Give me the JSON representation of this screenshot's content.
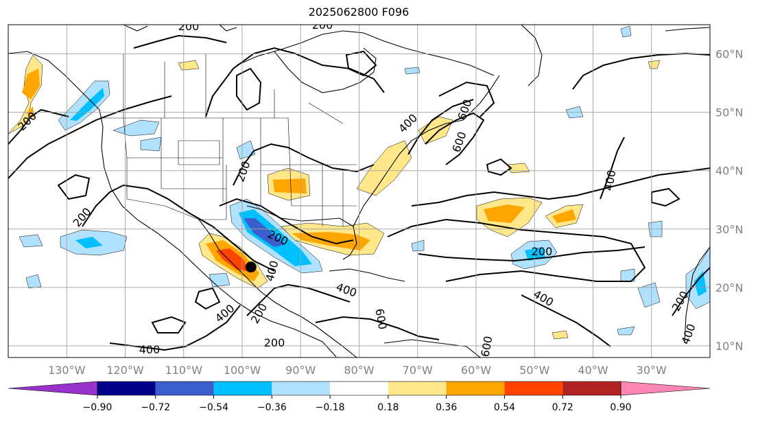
{
  "title": "2025062800 F096",
  "map": {
    "lon_range": [
      -140,
      -20
    ],
    "lat_range": [
      8,
      65
    ],
    "lon_ticks": [
      "130°W",
      "120°W",
      "110°W",
      "100°W",
      "90°W",
      "80°W",
      "70°W",
      "60°W",
      "50°W",
      "40°W",
      "30°W"
    ],
    "lat_ticks": [
      "60°N",
      "50°N",
      "40°N",
      "30°N",
      "20°N",
      "10°N"
    ],
    "marker": {
      "lon": -98.5,
      "lat": 23.5,
      "color": "#000000"
    },
    "contour_labels": [
      "200",
      "200",
      "200",
      "200",
      "200",
      "200",
      "200",
      "200",
      "200",
      "400",
      "400",
      "400",
      "400",
      "400",
      "400",
      "400",
      "400",
      "600",
      "600",
      "600",
      "600",
      "200"
    ]
  },
  "colorbar": {
    "ticks": [
      "−0.90",
      "−0.72",
      "−0.54",
      "−0.36",
      "−0.18",
      "0.18",
      "0.36",
      "0.54",
      "0.72",
      "0.90"
    ],
    "colors": [
      "#9932cc",
      "#00008b",
      "#3a5fcd",
      "#00bfff",
      "#b0e2ff",
      "#ffffff",
      "#ffe78a",
      "#ffa500",
      "#ff4500",
      "#b22222",
      "#ff85b4"
    ]
  }
}
